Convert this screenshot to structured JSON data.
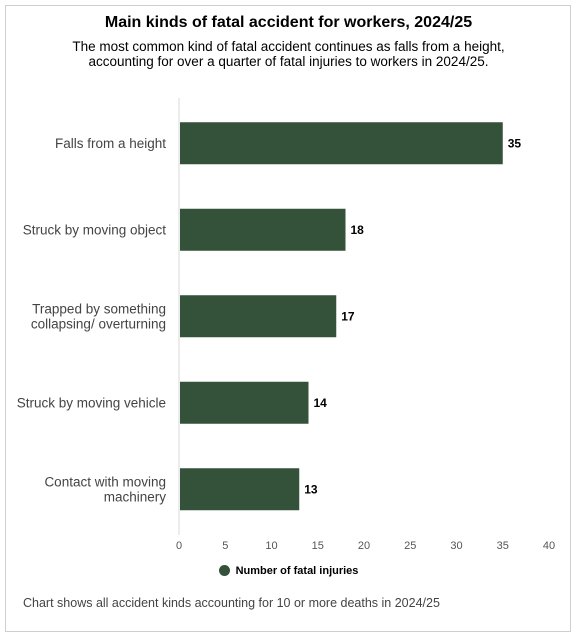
{
  "chart_data": {
    "type": "bar",
    "orientation": "horizontal",
    "title": "Main kinds of fatal accident for workers, 2024/25",
    "subtitle": "The most common kind of fatal accident continues as falls from a height, accounting for over a quarter of fatal injuries to workers in 2024/25.",
    "categories": [
      [
        "Falls from a height"
      ],
      [
        "Struck by moving object"
      ],
      [
        "Trapped by something",
        "collapsing/ overturning"
      ],
      [
        "Struck by moving vehicle"
      ],
      [
        "Contact with moving",
        "machinery"
      ]
    ],
    "series": [
      {
        "name": "Number of fatal injuries",
        "values": [
          35,
          18,
          17,
          14,
          13
        ]
      }
    ],
    "xlim": [
      0,
      40
    ],
    "xticks": [
      0,
      5,
      10,
      15,
      20,
      25,
      30,
      35,
      40
    ],
    "grid": false,
    "data_labels": true,
    "legend_position": "bottom",
    "bar_color": "#34513a",
    "footnote": "Chart shows all accident kinds accounting for 10 or more deaths in 2024/25"
  }
}
